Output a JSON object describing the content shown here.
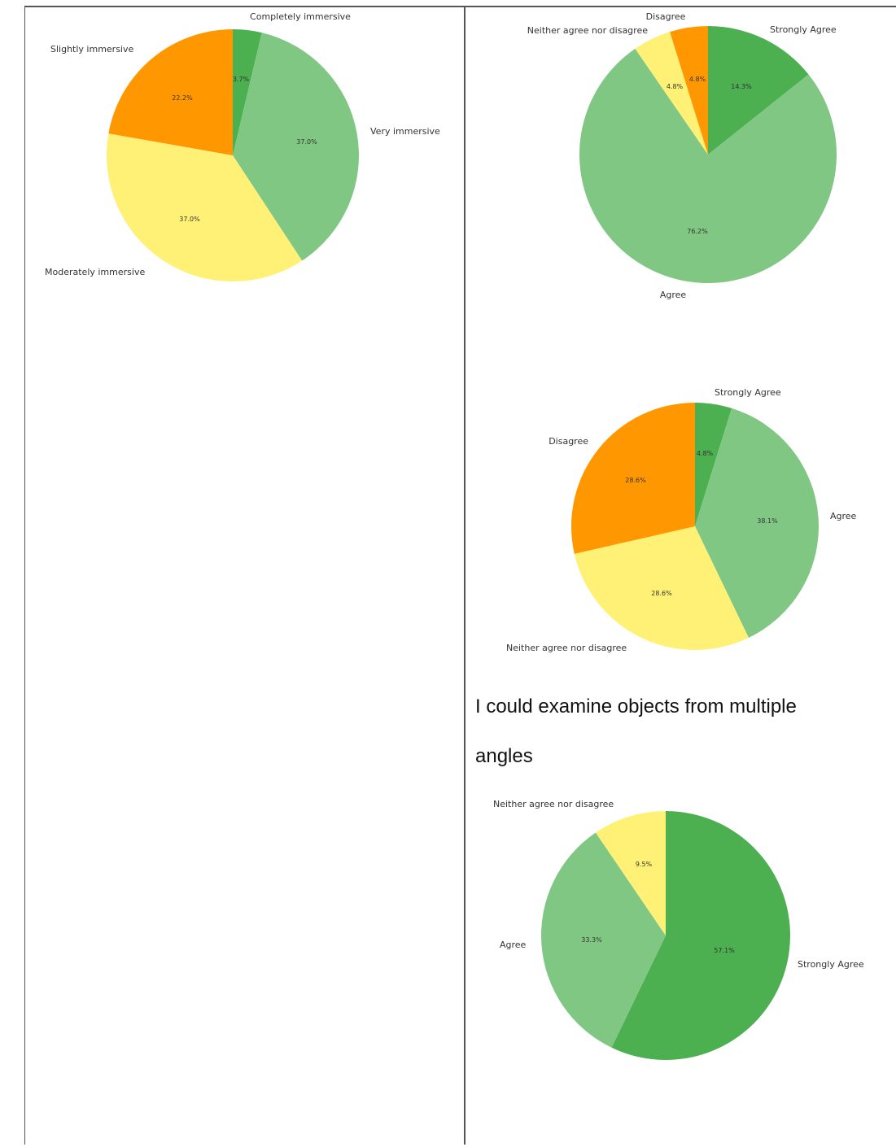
{
  "colors": {
    "dark_green": "#4caf50",
    "light_green": "#81c784",
    "yellow": "#fff176",
    "orange": "#ff9800",
    "border": "#555555",
    "text": "#333333"
  },
  "section_title": {
    "line1": "I could examine objects from multiple",
    "line2": "angles"
  },
  "chart_data": [
    {
      "id": "immersion",
      "type": "pie",
      "title": "",
      "slices": [
        {
          "label": "Completely immersive",
          "value": 3.7,
          "pct_text": "3.7%",
          "color": "#4caf50"
        },
        {
          "label": "Very immersive",
          "value": 37.0,
          "pct_text": "37.0%",
          "color": "#81c784"
        },
        {
          "label": "Moderately immersive",
          "value": 37.0,
          "pct_text": "37.0%",
          "color": "#fff176"
        },
        {
          "label": "Slightly immersive",
          "value": 22.2,
          "pct_text": "22.2%",
          "color": "#ff9800"
        }
      ]
    },
    {
      "id": "agreement-1",
      "type": "pie",
      "title": "",
      "slices": [
        {
          "label": "Strongly Agree",
          "value": 14.3,
          "pct_text": "14.3%",
          "color": "#4caf50"
        },
        {
          "label": "Agree",
          "value": 76.2,
          "pct_text": "76.2%",
          "color": "#81c784"
        },
        {
          "label": "Neither agree nor disagree",
          "value": 4.8,
          "pct_text": "4.8%",
          "color": "#fff176"
        },
        {
          "label": "Disagree",
          "value": 4.8,
          "pct_text": "4.8%",
          "color": "#ff9800"
        }
      ]
    },
    {
      "id": "agreement-2",
      "type": "pie",
      "title": "",
      "slices": [
        {
          "label": "Strongly Agree",
          "value": 4.8,
          "pct_text": "4.8%",
          "color": "#4caf50"
        },
        {
          "label": "Agree",
          "value": 38.1,
          "pct_text": "38.1%",
          "color": "#81c784"
        },
        {
          "label": "Neither agree nor disagree",
          "value": 28.6,
          "pct_text": "28.6%",
          "color": "#fff176"
        },
        {
          "label": "Disagree",
          "value": 28.6,
          "pct_text": "28.6%",
          "color": "#ff9800"
        }
      ]
    },
    {
      "id": "multiple-angles",
      "type": "pie",
      "title": "I could examine objects from multiple angles",
      "slices": [
        {
          "label": "Strongly Agree",
          "value": 57.1,
          "pct_text": "57.1%",
          "color": "#4caf50"
        },
        {
          "label": "Agree",
          "value": 33.3,
          "pct_text": "33.3%",
          "color": "#81c784"
        },
        {
          "label": "Neither agree nor disagree",
          "value": 9.5,
          "pct_text": "9.5%",
          "color": "#fff176"
        }
      ]
    }
  ]
}
